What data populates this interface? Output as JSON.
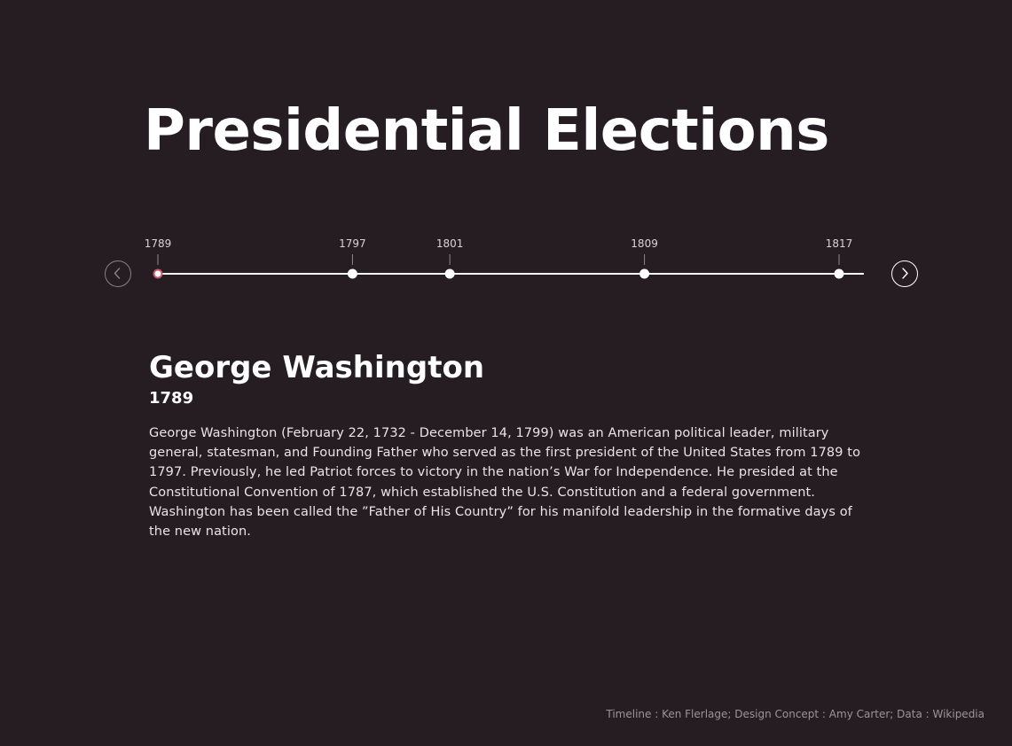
{
  "page": {
    "title": "Presidential Elections"
  },
  "navigation": {
    "prev_icon": "chevron-left-icon",
    "next_icon": "chevron-right-icon"
  },
  "timeline": {
    "selected_year": "1789",
    "colors": {
      "line": "#ffffff",
      "point": "#ffffff",
      "selected_ring": "#c9566a",
      "tick_label": "#d9d4d6"
    },
    "points": [
      {
        "year": "1789"
      },
      {
        "year": "1797"
      },
      {
        "year": "1801"
      },
      {
        "year": "1809"
      },
      {
        "year": "1817"
      }
    ]
  },
  "detail": {
    "name": "George Washington",
    "year": "1789",
    "description": "George Washington (February 22, 1732 - December 14, 1799) was an American political leader, military general, statesman, and Founding Father who served as the first president of the United States from 1789 to 1797. Previously, he led Patriot forces to victory in the nation’s War for Independence. He presided at the Constitutional Convention of 1787, which established the U.S. Constitution and a federal government. Washington has been called the ”Father of His Country” for his manifold leadership in the formative days of the new nation."
  },
  "footer": {
    "credit": "Timeline : Ken Flerlage; Design Concept : Amy Carter; Data : Wikipedia"
  },
  "colors": {
    "background": "#261d22",
    "text": "#ffffff",
    "muted": "#9b9497"
  }
}
